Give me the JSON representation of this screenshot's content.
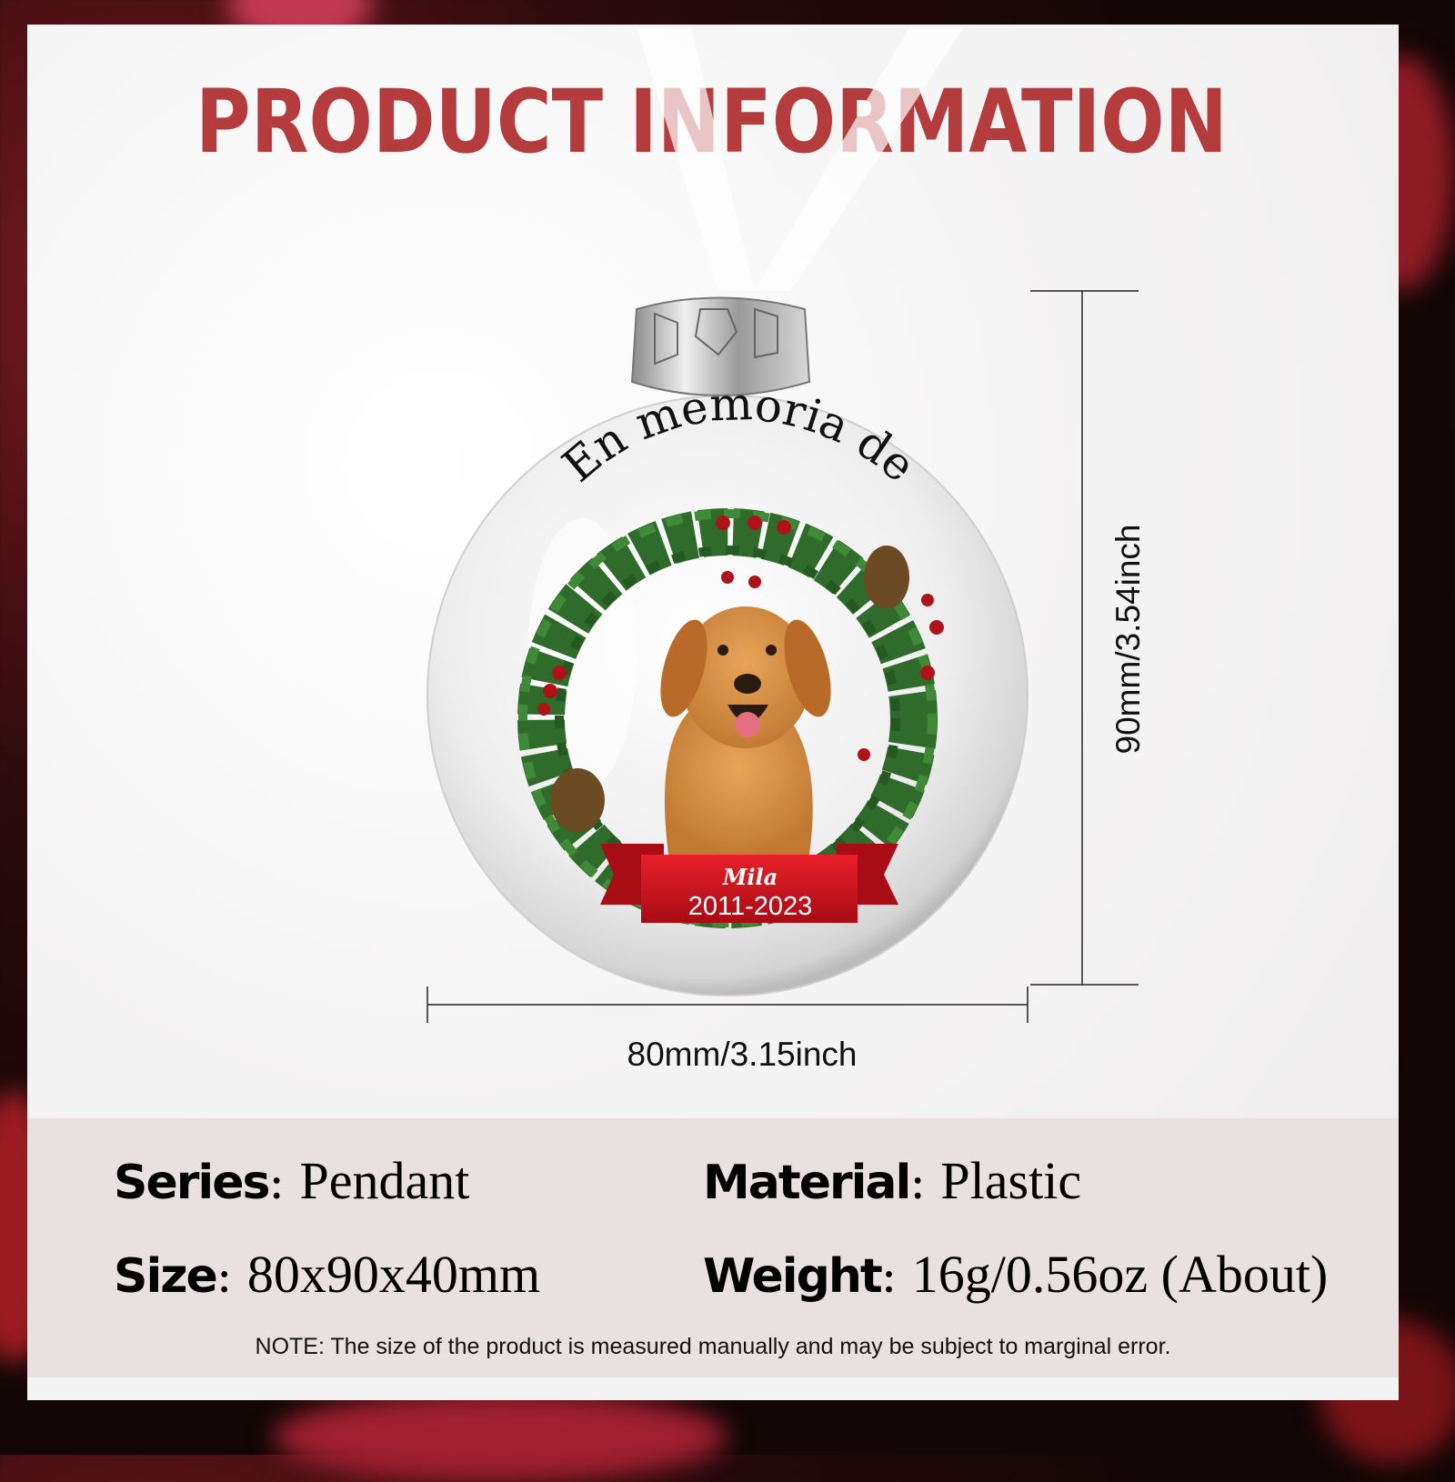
{
  "title": "PRODUCT INFORMATION",
  "colors": {
    "title": "#b53c3c",
    "band": "#e9e1e1",
    "ribbon": "#d0121c",
    "wreath": "#2f6b2a"
  },
  "ornament": {
    "arc_text": "En memoria de",
    "name": "Mila",
    "years": "2011-2023"
  },
  "dimensions": {
    "width_label": "80mm/3.15inch",
    "height_label": "90mm/3.54inch"
  },
  "specs": [
    {
      "label": "Series",
      "value": "Pendant"
    },
    {
      "label": "Material",
      "value": "Plastic"
    },
    {
      "label": "Size",
      "value": "80x90x40mm"
    },
    {
      "label": "Weight",
      "value": "16g/0.56oz (About)"
    }
  ],
  "note": "NOTE: The size of the product is measured manually and may be subject to marginal error."
}
